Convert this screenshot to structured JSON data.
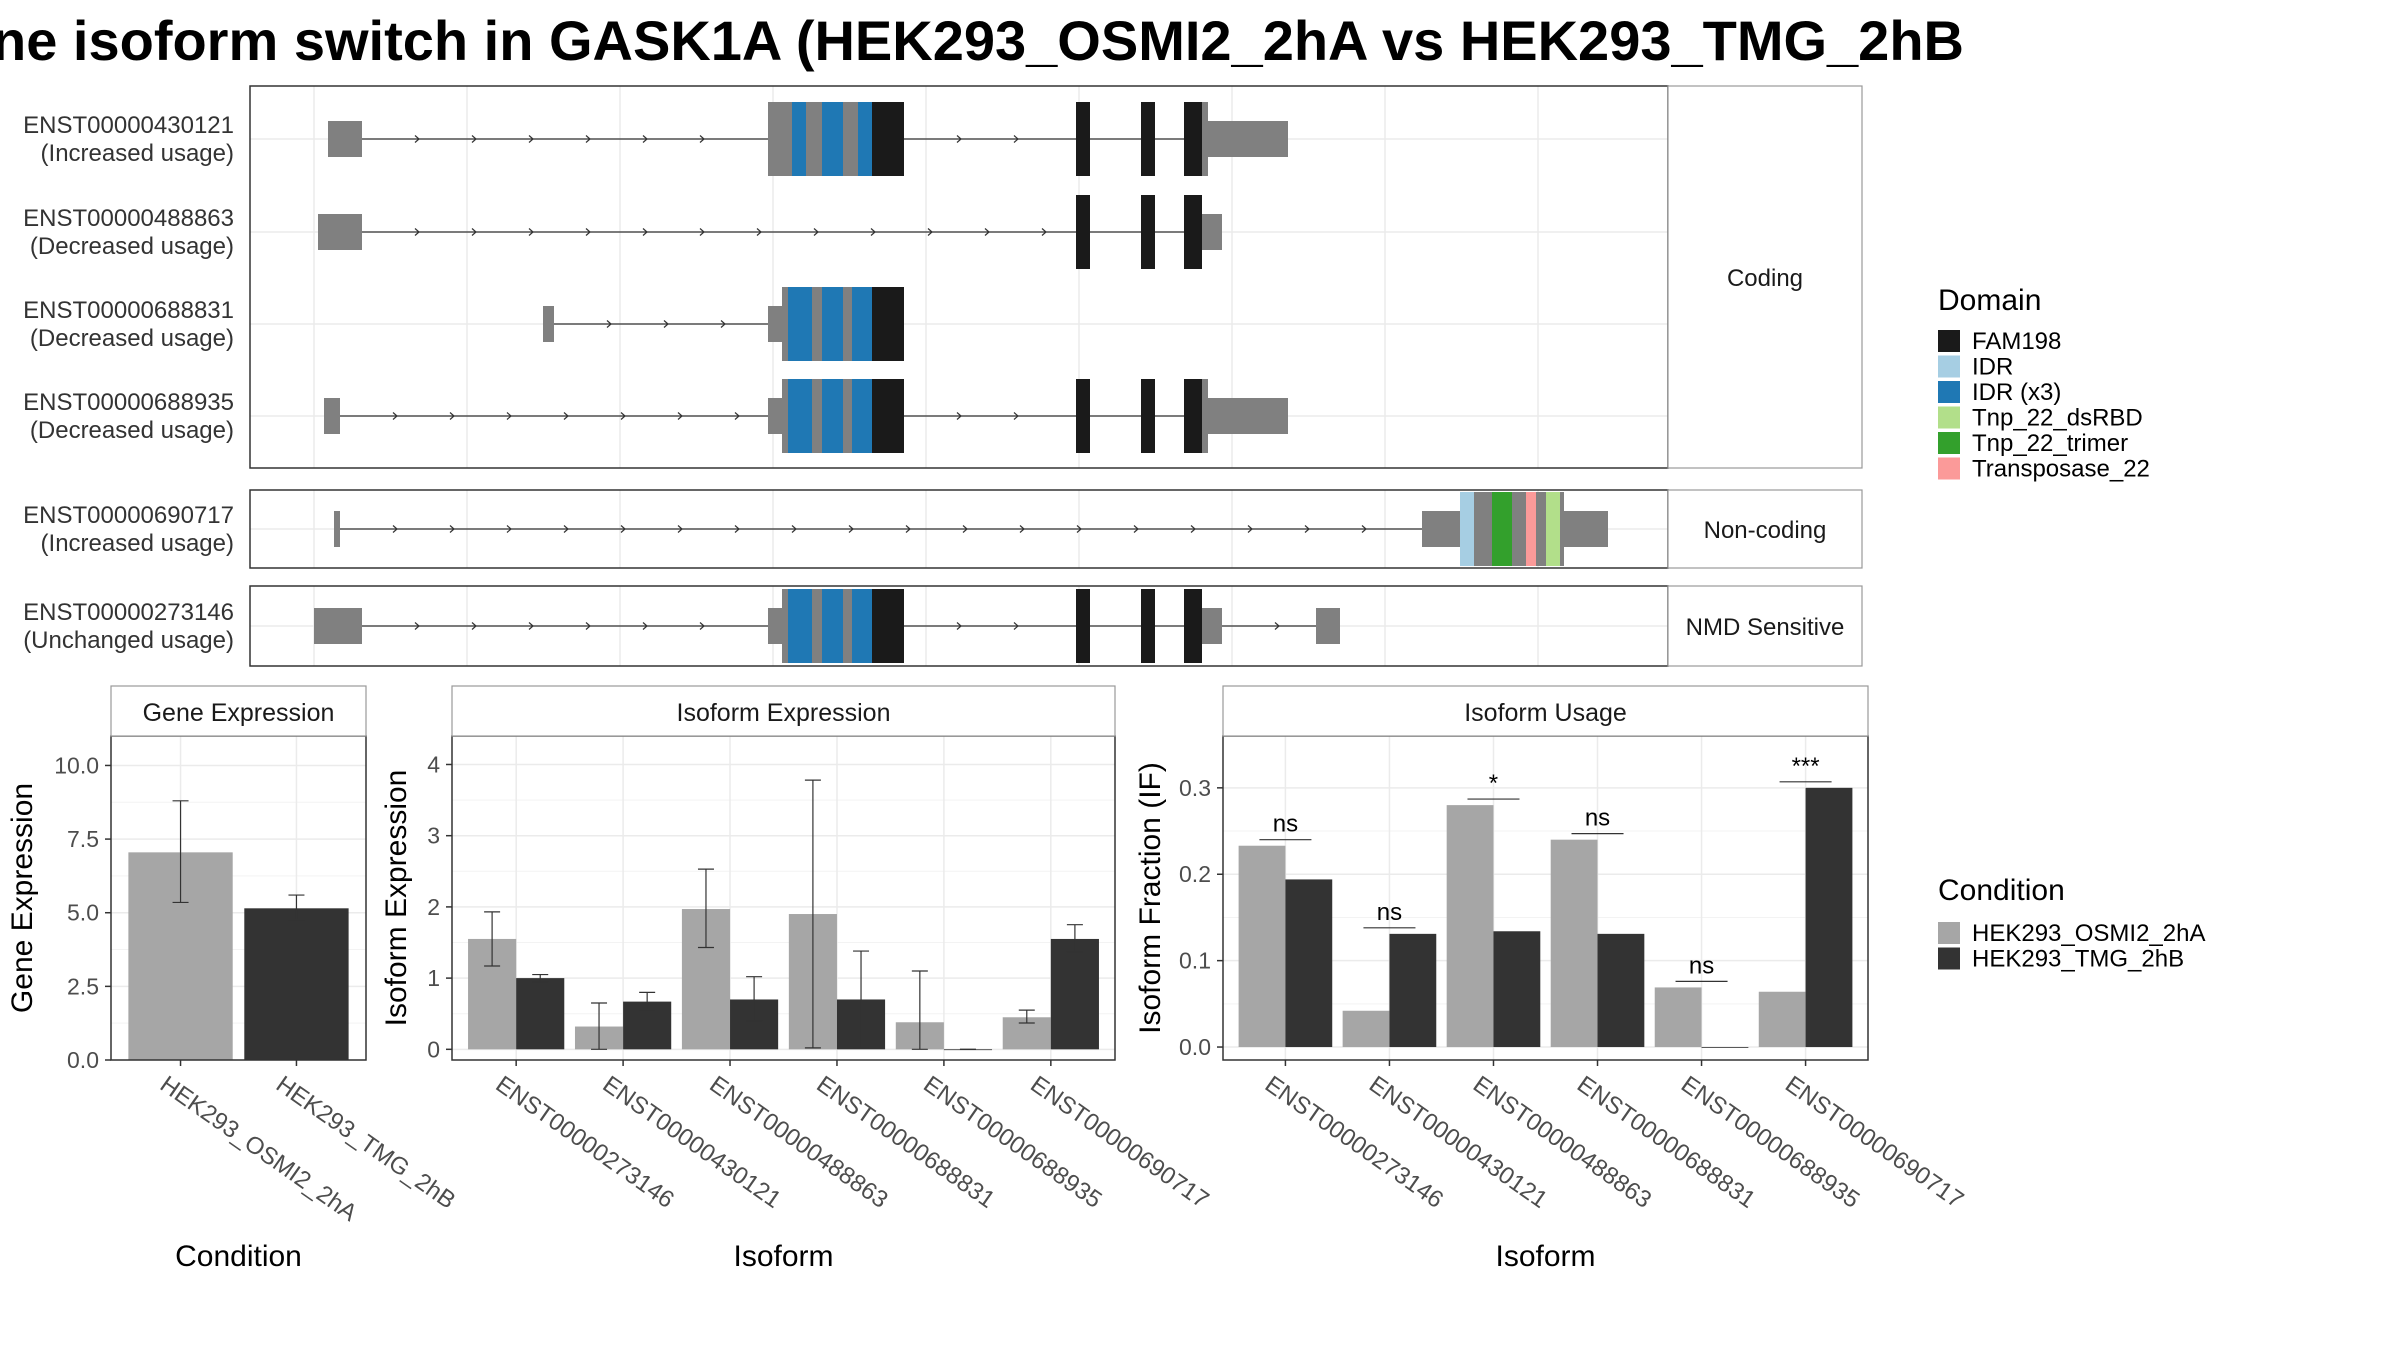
{
  "title": "ne isoform switch in GASK1A (HEK293_OSMI2_2hA vs HEK293_TMG_2hB",
  "colors": {
    "utr": "#808080",
    "FAM198": "#1a1a1a",
    "IDR": "#a6cee3",
    "IDR (x3)": "#1f78b4",
    "Tnp_22_dsRBD": "#b2df8a",
    "Tnp_22_trimer": "#33a02c",
    "Transposase_22": "#fb9a99",
    "cond1": "#a6a6a6",
    "cond2": "#333333"
  },
  "structure": {
    "groups": [
      {
        "label": "Coding",
        "transcripts": [
          {
            "id": "ENST00000430121",
            "status": "(Increased usage)"
          },
          {
            "id": "ENST00000488863",
            "status": "(Decreased usage)"
          },
          {
            "id": "ENST00000688831",
            "status": "(Decreased usage)"
          },
          {
            "id": "ENST00000688935",
            "status": "(Decreased usage)"
          }
        ]
      },
      {
        "label": "Non-coding",
        "transcripts": [
          {
            "id": "ENST00000690717",
            "status": "(Increased usage)"
          }
        ]
      },
      {
        "label": "NMD Sensitive",
        "transcripts": [
          {
            "id": "ENST00000273146",
            "status": "(Unchanged usage)"
          }
        ]
      }
    ]
  },
  "legend_domain": {
    "title": "Domain",
    "items": [
      "FAM198",
      "IDR",
      "IDR (x3)",
      "Tnp_22_dsRBD",
      "Tnp_22_trimer",
      "Transposase_22"
    ]
  },
  "legend_condition": {
    "title": "Condition",
    "items": [
      "HEK293_OSMI2_2hA",
      "HEK293_TMG_2hB"
    ]
  },
  "chart_data": [
    {
      "type": "bar",
      "title": "Gene Expression",
      "xlabel": "Condition",
      "ylabel": "Gene Expression",
      "categories": [
        "HEK293_OSMI2_2hA",
        "HEK293_TMG_2hB"
      ],
      "values": [
        7.05,
        5.15
      ],
      "error_low": [
        5.35,
        4.75
      ],
      "error_high": [
        8.8,
        5.6
      ],
      "ylim": [
        0,
        11
      ],
      "yticks": [
        "0.0",
        "2.5",
        "5.0",
        "7.5",
        "10.0"
      ],
      "ytick_values": [
        0,
        2.5,
        5,
        7.5,
        10
      ],
      "grid": true
    },
    {
      "type": "bar",
      "title": "Isoform Expression",
      "xlabel": "Isoform",
      "ylabel": "Isoform Expression",
      "categories": [
        "ENST00000273146",
        "ENST00000430121",
        "ENST00000488863",
        "ENST00000688831",
        "ENST00000688935",
        "ENST00000690717"
      ],
      "series": [
        {
          "name": "HEK293_OSMI2_2hA",
          "values": [
            1.55,
            0.32,
            1.97,
            1.9,
            0.38,
            0.45
          ],
          "error_low": [
            1.17,
            0.0,
            1.43,
            0.02,
            0.0,
            0.37
          ],
          "error_high": [
            1.93,
            0.65,
            2.53,
            3.78,
            1.1,
            0.55
          ]
        },
        {
          "name": "HEK293_TMG_2hB",
          "values": [
            1.0,
            0.67,
            0.7,
            0.7,
            0.0,
            1.55
          ],
          "error_low": [
            0.95,
            0.55,
            0.4,
            0.02,
            0.0,
            1.37
          ],
          "error_high": [
            1.05,
            0.8,
            1.02,
            1.38,
            0.0,
            1.75
          ]
        }
      ],
      "ylim": [
        -0.15,
        4.4
      ],
      "yticks": [
        "0",
        "1",
        "2",
        "3",
        "4"
      ],
      "ytick_values": [
        0,
        1,
        2,
        3,
        4
      ],
      "grid": true
    },
    {
      "type": "bar",
      "title": "Isoform Usage",
      "xlabel": "Isoform",
      "ylabel": "Isoform Fraction (IF)",
      "categories": [
        "ENST00000273146",
        "ENST00000430121",
        "ENST00000488863",
        "ENST00000688831",
        "ENST00000688935",
        "ENST00000690717"
      ],
      "series": [
        {
          "name": "HEK293_OSMI2_2hA",
          "values": [
            0.233,
            0.042,
            0.28,
            0.24,
            0.069,
            0.064
          ]
        },
        {
          "name": "HEK293_TMG_2hB",
          "values": [
            0.194,
            0.131,
            0.134,
            0.131,
            0.0,
            0.3
          ]
        }
      ],
      "significance": [
        "ns",
        "ns",
        "*",
        "ns",
        "ns",
        "***"
      ],
      "ylim": [
        -0.015,
        0.36
      ],
      "yticks": [
        "0.0",
        "0.1",
        "0.2",
        "0.3"
      ],
      "ytick_values": [
        0,
        0.1,
        0.2,
        0.3
      ],
      "grid": true
    }
  ]
}
